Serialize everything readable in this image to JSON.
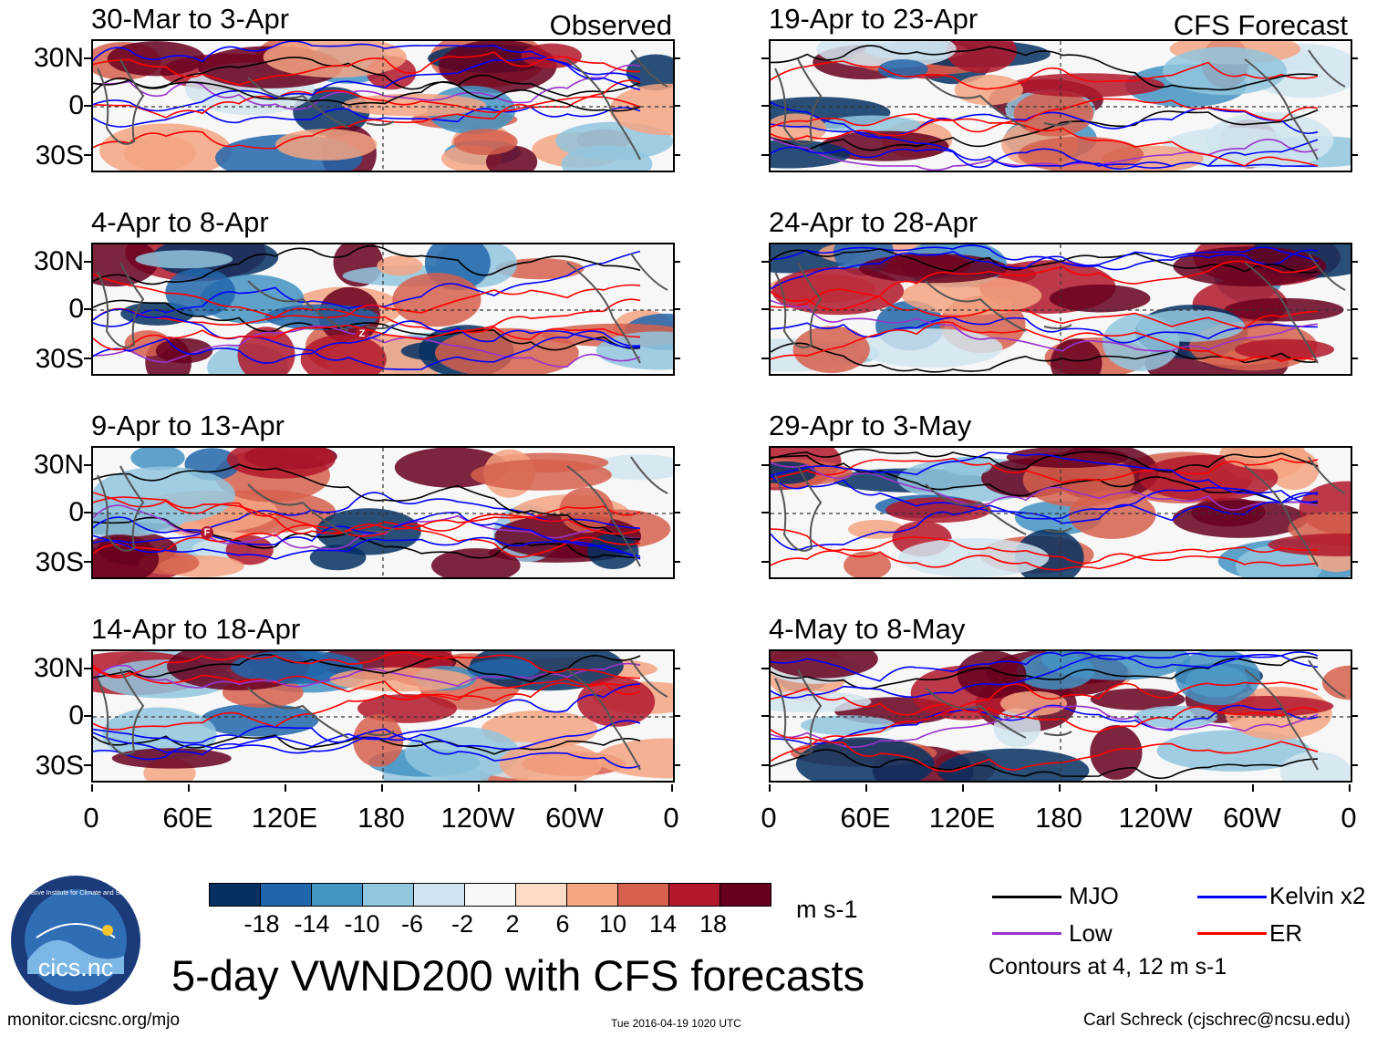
{
  "left_header": "Observed",
  "right_header": "CFS Forecast",
  "panels_left": [
    {
      "title": "30-Mar to 3-Apr"
    },
    {
      "title": "4-Apr to 8-Apr"
    },
    {
      "title": "9-Apr to 13-Apr"
    },
    {
      "title": "14-Apr to 18-Apr"
    }
  ],
  "panels_right": [
    {
      "title": "19-Apr to 23-Apr"
    },
    {
      "title": "24-Apr to 28-Apr"
    },
    {
      "title": "29-Apr to 3-May"
    },
    {
      "title": "4-May to 8-May"
    }
  ],
  "lat_labels": [
    "30N",
    "0",
    "30S"
  ],
  "lon_labels": [
    "0",
    "60E",
    "120E",
    "180",
    "120W",
    "60W",
    "0"
  ],
  "colorbar": {
    "colors": [
      "#053061",
      "#2166ac",
      "#4393c3",
      "#92c5de",
      "#d1e5f0",
      "#f7f7f7",
      "#fddbc7",
      "#f4a582",
      "#d6604d",
      "#b2182b",
      "#67001f"
    ],
    "ticks": [
      "-18",
      "-14",
      "-10",
      "-6",
      "-2",
      "2",
      "6",
      "10",
      "14",
      "18"
    ],
    "units": "m s-1"
  },
  "legend": {
    "mjo": {
      "label": "MJO",
      "color": "#000000"
    },
    "kelvin": {
      "label": "Kelvin x2",
      "color": "#0000ff"
    },
    "low": {
      "label": "Low",
      "color": "#9a32cd"
    },
    "er": {
      "label": "ER",
      "color": "#ff0000"
    },
    "contours_note": "Contours at 4, 12 m s-1"
  },
  "main_title": "5-day VWND200 with CFS forecasts",
  "logo_text": "cics.nc",
  "logo_ring_text": "Cooperative Institute for Climate and Satellites",
  "footer": {
    "url": "monitor.cicsnc.org/mjo",
    "timestamp": "Tue 2016-04-19 1020 UTC",
    "author": "Carl Schreck (cjschrec@ncsu.edu)"
  },
  "markers": {
    "z": "Z",
    "f": "F"
  }
}
